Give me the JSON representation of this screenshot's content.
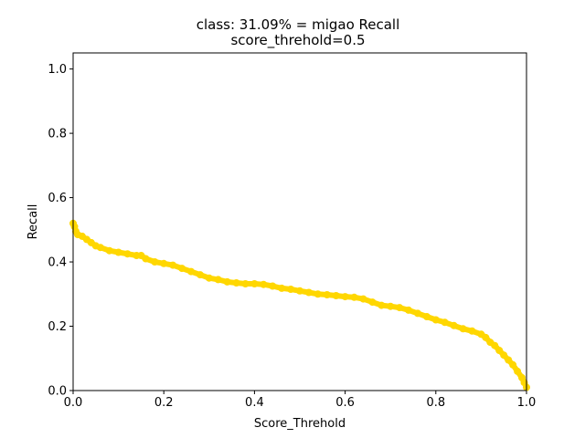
{
  "chart_data": {
    "type": "line",
    "title": "class: 31.09% = migao Recall",
    "subtitle": "score_threhold=0.5",
    "xlabel": "Score_Threhold",
    "ylabel": "Recall",
    "xlim": [
      0,
      1.0
    ],
    "ylim": [
      0,
      1.05
    ],
    "xticks": [
      "0.0",
      "0.2",
      "0.4",
      "0.6",
      "0.8",
      "1.0"
    ],
    "yticks": [
      "0.0",
      "0.2",
      "0.4",
      "0.6",
      "0.8",
      "1.0"
    ],
    "grid": false,
    "legend": "none",
    "series": [
      {
        "color": "#ffd700",
        "marker": "circle",
        "x": [
          0.0,
          0.003,
          0.006,
          0.01,
          0.02,
          0.03,
          0.04,
          0.05,
          0.06,
          0.08,
          0.1,
          0.12,
          0.14,
          0.15,
          0.16,
          0.18,
          0.2,
          0.22,
          0.24,
          0.26,
          0.28,
          0.3,
          0.32,
          0.34,
          0.36,
          0.38,
          0.4,
          0.42,
          0.44,
          0.46,
          0.48,
          0.5,
          0.52,
          0.54,
          0.56,
          0.58,
          0.6,
          0.62,
          0.64,
          0.66,
          0.68,
          0.7,
          0.72,
          0.74,
          0.76,
          0.78,
          0.8,
          0.82,
          0.84,
          0.86,
          0.88,
          0.9,
          0.91,
          0.92,
          0.93,
          0.94,
          0.95,
          0.96,
          0.97,
          0.98,
          0.99,
          0.995,
          1.0
        ],
        "y": [
          0.52,
          0.51,
          0.495,
          0.485,
          0.48,
          0.47,
          0.46,
          0.45,
          0.445,
          0.435,
          0.43,
          0.425,
          0.42,
          0.42,
          0.41,
          0.4,
          0.395,
          0.39,
          0.38,
          0.37,
          0.36,
          0.35,
          0.345,
          0.338,
          0.335,
          0.332,
          0.332,
          0.33,
          0.325,
          0.318,
          0.315,
          0.31,
          0.305,
          0.3,
          0.298,
          0.295,
          0.292,
          0.29,
          0.285,
          0.275,
          0.265,
          0.262,
          0.258,
          0.25,
          0.24,
          0.23,
          0.22,
          0.212,
          0.202,
          0.192,
          0.185,
          0.175,
          0.165,
          0.15,
          0.14,
          0.125,
          0.11,
          0.095,
          0.08,
          0.06,
          0.04,
          0.025,
          0.01
        ]
      }
    ]
  }
}
